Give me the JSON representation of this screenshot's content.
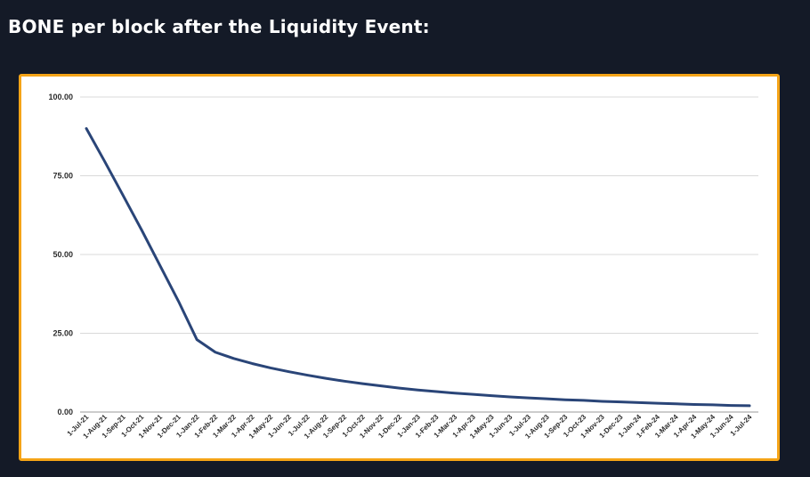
{
  "page": {
    "heading": "BONE per block after the Liquidity Event:"
  },
  "chart_data": {
    "type": "line",
    "title": "",
    "xlabel": "",
    "ylabel": "",
    "ylim": [
      0,
      100
    ],
    "yticks": [
      "0.00",
      "25.00",
      "50.00",
      "75.00",
      "100.00"
    ],
    "grid": true,
    "categories": [
      "1-Jul-21",
      "1-Aug-21",
      "1-Sep-21",
      "1-Oct-21",
      "1-Nov-21",
      "1-Dec-21",
      "1-Jan-22",
      "1-Feb-22",
      "1-Mar-22",
      "1-Apr-22",
      "1-May-22",
      "1-Jun-22",
      "1-Jul-22",
      "1-Aug-22",
      "1-Sep-22",
      "1-Oct-22",
      "1-Nov-22",
      "1-Dec-22",
      "1-Jan-23",
      "1-Feb-23",
      "1-Mar-23",
      "1-Apr-23",
      "1-May-23",
      "1-Jun-23",
      "1-Jul-23",
      "1-Aug-23",
      "1-Sep-23",
      "1-Oct-23",
      "1-Nov-23",
      "1-Dec-23",
      "1-Jan-24",
      "1-Feb-24",
      "1-Mar-24",
      "1-Apr-24",
      "1-May-24",
      "1-Jun-24",
      "1-Jul-24"
    ],
    "series": [
      {
        "color": "#2a4578",
        "values": [
          90,
          79.5,
          68.7,
          57.8,
          46.5,
          35.2,
          23.0,
          19.0,
          17.0,
          15.4,
          14.0,
          12.8,
          11.7,
          10.7,
          9.8,
          9.0,
          8.3,
          7.6,
          7.0,
          6.5,
          6.0,
          5.6,
          5.2,
          4.8,
          4.5,
          4.2,
          3.9,
          3.7,
          3.4,
          3.2,
          3.0,
          2.8,
          2.6,
          2.4,
          2.3,
          2.1,
          2.0
        ]
      }
    ]
  }
}
